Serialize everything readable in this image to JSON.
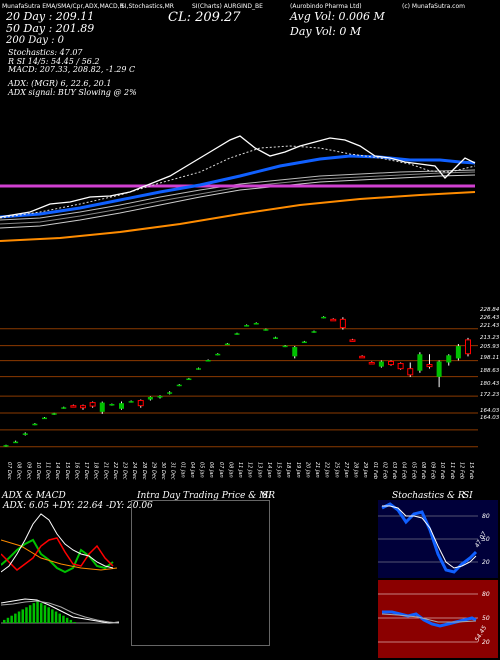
{
  "header": {
    "top_labels": [
      "MunafaSutra EMA/SMA/Cpr,ADX,MACD,R",
      "SI,Stochastics,MR",
      "SI(Charts) AURGIND_BE",
      "(Aurobindo Pharma Ltd)",
      "(c) MunafaSutra.com"
    ],
    "left_ema": [
      "20 Day : 209.11",
      "50 Day : 201.89",
      "200 Day : 0"
    ],
    "close": "CL: 209.27",
    "avg_vol": "Avg Vol: 0.006  M",
    "day_vol": "Day Vol: 0  M"
  },
  "indicators": {
    "lines": [
      "Stochastics: 47.07",
      "R        SI 14/5: 54.45 / 56.2",
      "MACD: 207.33,  208.82,  -1.29 C",
      "",
      "ADX:                     (MGR) 6,  22.6,  20.1",
      "ADX  signal:                      BUY Slowing @ 2%"
    ]
  },
  "colors": {
    "background": "#000000",
    "up_candle": "#00c000",
    "down_candle": "#ff0000",
    "ema_blue": "#1060ff",
    "ema_orange": "#ff8c00",
    "magenta": "#d040d0",
    "price_line": "#ffffff",
    "level_line": "#8b3a00"
  },
  "chart_data": {
    "type": "candlestick",
    "price_axis_ticks": [
      "228.84",
      "226.43",
      "221.43",
      "213.23",
      "205.93",
      "198.11",
      "188.63",
      "180.43",
      "172.23",
      "164.03",
      "164.03"
    ],
    "price_levels": [
      221.43,
      213.23,
      205.93,
      198.11,
      188.63,
      180.43,
      172.23,
      164.03
    ],
    "dates": [
      "07 Dec",
      "08 Dec",
      "09 Dec",
      "10 Dec",
      "11 Dec",
      "14 Dec",
      "15 Dec",
      "16 Dec",
      "17 Dec",
      "18 Dec",
      "21 Dec",
      "22 Dec",
      "23 Dec",
      "24 Dec",
      "28 Dec",
      "29 Dec",
      "30 Dec",
      "31 Dec",
      "01 Jan",
      "04 Jan",
      "05 Jan",
      "06 Jan",
      "07 Jan",
      "08 Jan",
      "11 Jan",
      "12 Jan",
      "13 Jan",
      "14 Jan",
      "15 Jan",
      "18 Jan",
      "19 Jan",
      "20 Jan",
      "21 Jan",
      "22 Jan",
      "25 Jan",
      "27 Jan",
      "28 Jan",
      "29 Jan",
      "01 Feb",
      "02 Feb",
      "03 Feb",
      "04 Feb",
      "05 Feb",
      "08 Feb",
      "09 Feb",
      "10 Feb",
      "11 Feb",
      "12 Feb",
      "15 Feb"
    ],
    "candles": [
      [
        164.5,
        165,
        164,
        164.8
      ],
      [
        166.2,
        167,
        166,
        166.5
      ],
      [
        170,
        171,
        169.5,
        170.5
      ],
      [
        175,
        175.5,
        174.5,
        175.2
      ],
      [
        178,
        178.5,
        177.5,
        178.2
      ],
      [
        180,
        180.5,
        179.5,
        180.3
      ],
      [
        183,
        183.5,
        182.5,
        183.2
      ],
      [
        184,
        184.5,
        183.5,
        183.8
      ],
      [
        184,
        184.5,
        182,
        183
      ],
      [
        185.5,
        186,
        183,
        183.8
      ],
      [
        181,
        186,
        180,
        185.5
      ],
      [
        184.5,
        185,
        184,
        184.8
      ],
      [
        182.5,
        186,
        182,
        185.2
      ],
      [
        186,
        186.5,
        185.5,
        186.2
      ],
      [
        186.5,
        187,
        183,
        184
      ],
      [
        187,
        188.5,
        186.5,
        188.2
      ],
      [
        188,
        189,
        187.5,
        188.7
      ],
      [
        190,
        191,
        189.5,
        190.5
      ],
      [
        194,
        194.5,
        193.5,
        194.2
      ],
      [
        197,
        197.5,
        196.5,
        197.2
      ],
      [
        202,
        202.5,
        201.5,
        202.2
      ],
      [
        206,
        206.5,
        205.5,
        206.2
      ],
      [
        209,
        209.5,
        208.5,
        209.2
      ],
      [
        214,
        214.5,
        213.5,
        214.2
      ],
      [
        219,
        219.5,
        218.5,
        219.2
      ],
      [
        223,
        223.5,
        222.5,
        223.2
      ],
      [
        224,
        224.5,
        223.5,
        224.2
      ],
      [
        221,
        221.5,
        220.5,
        221.2
      ],
      [
        217,
        217.5,
        216.5,
        217.2
      ],
      [
        213,
        213.5,
        212.5,
        213.2
      ],
      [
        208,
        213,
        207,
        212.5
      ],
      [
        215,
        215.5,
        214.5,
        215.2
      ],
      [
        220,
        220.5,
        219.5,
        220.2
      ],
      [
        227,
        227.5,
        226.5,
        227.2
      ],
      [
        226,
        226.5,
        225.5,
        225.8
      ],
      [
        226,
        227,
        221,
        222
      ],
      [
        216,
        216.5,
        215.5,
        215.8
      ],
      [
        208,
        208.5,
        207.5,
        207.8
      ],
      [
        205,
        205.5,
        204.5,
        204.8
      ],
      [
        203,
        206,
        202.5,
        205.5
      ],
      [
        205.5,
        206,
        203.5,
        204
      ],
      [
        204.5,
        205,
        201.5,
        202
      ],
      [
        202,
        205,
        198,
        199
      ],
      [
        201,
        210,
        200,
        209
      ],
      [
        204,
        209,
        202,
        203
      ],
      [
        198,
        206,
        193,
        205.5
      ],
      [
        205,
        209,
        203.5,
        208.5
      ],
      [
        207,
        214,
        206,
        213
      ],
      [
        216,
        217,
        208,
        209.27
      ]
    ],
    "ma_labels": [
      "20 Day : 209.11",
      "50 Day : 201.89",
      "200 Day : 0"
    ]
  },
  "panels": {
    "adx": {
      "title": "ADX  & MACD",
      "readout": "ADX: 6.05  +DY: 22.64  -DY: 20.06"
    },
    "intra": {
      "title": "Intra  Day Trading Price  & MR",
      "suffix": "SI"
    },
    "stoch": {
      "title": "Stochastics & R",
      "suffix": "SI",
      "ticks": [
        "80",
        "50",
        "20"
      ],
      "value": "47.07"
    },
    "rsi": {
      "ticks": [
        "80",
        "50",
        "20"
      ],
      "value": "54.45"
    }
  }
}
